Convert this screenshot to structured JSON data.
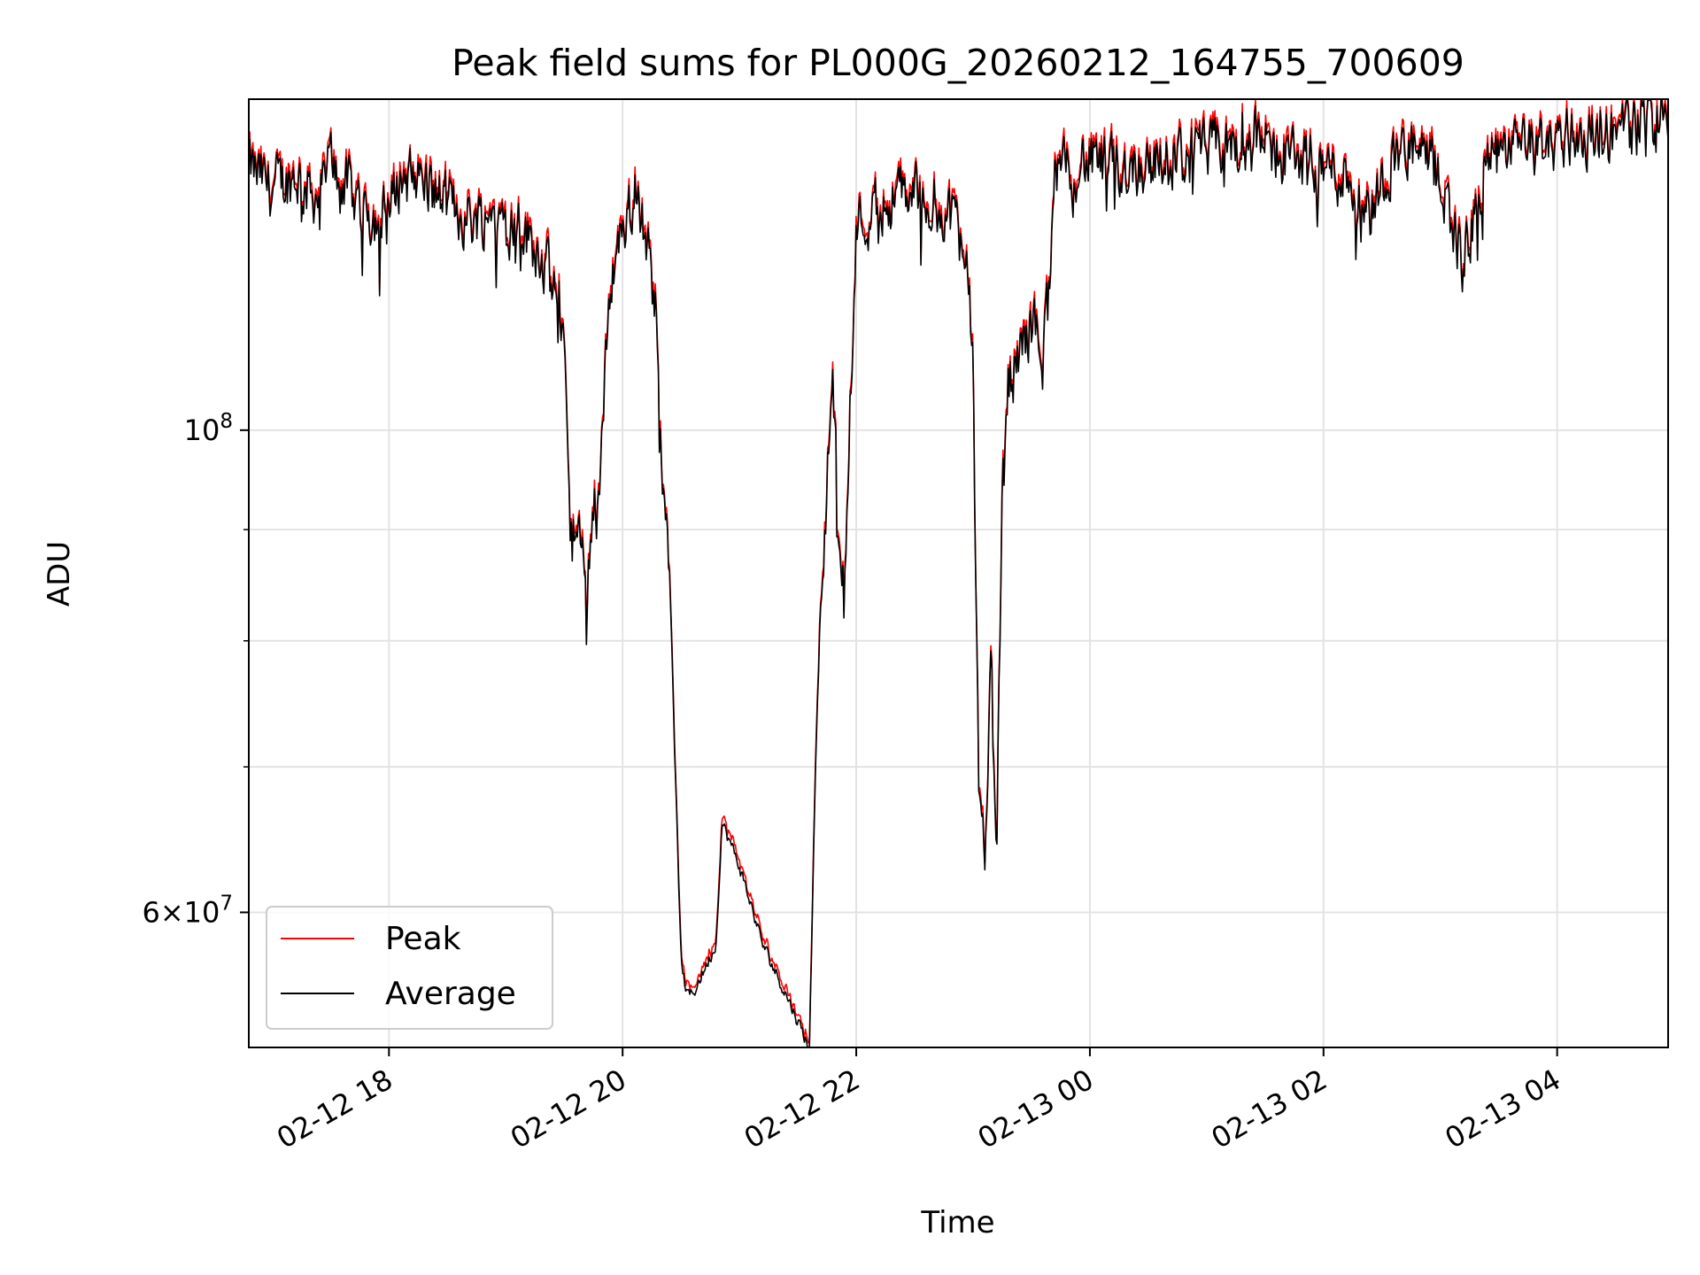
{
  "chart_data": {
    "type": "line",
    "title": "Peak field sums for PL000G_20260212_164755_700609",
    "xlabel": "Time",
    "ylabel": "ADU",
    "yscale": "log",
    "ylim": [
      52000000,
      142000000
    ],
    "xlim_hours": [
      16.8,
      28.95
    ],
    "x_unit": "hours since 2026-02-12 00:00",
    "x_ticks": [
      {
        "label": "02-12 18",
        "value": 18
      },
      {
        "label": "02-12 20",
        "value": 20
      },
      {
        "label": "02-12 22",
        "value": 22
      },
      {
        "label": "02-13 00",
        "value": 24
      },
      {
        "label": "02-13 02",
        "value": 26
      },
      {
        "label": "02-13 04",
        "value": 28
      }
    ],
    "y_major_ticks": [
      {
        "base": "10",
        "exp": "8",
        "value": 100000000
      },
      {
        "coef": "6",
        "base": "10",
        "exp": "7",
        "value": 60000000
      }
    ],
    "y_minor_ticks": [
      70000000,
      80000000,
      90000000
    ],
    "grid": true,
    "legend_position": "lower-left",
    "series": [
      {
        "name": "Peak",
        "color": "#ff0000"
      },
      {
        "name": "Average",
        "color": "#000000"
      }
    ],
    "x": [
      16.8,
      17.0,
      17.2,
      17.4,
      17.5,
      17.7,
      17.9,
      18.0,
      18.1,
      18.3,
      18.5,
      18.7,
      18.9,
      19.1,
      19.3,
      19.4,
      19.5,
      19.55,
      19.6,
      19.7,
      19.75,
      19.8,
      19.9,
      20.0,
      20.1,
      20.2,
      20.3,
      20.35,
      20.4,
      20.45,
      20.5,
      20.55,
      20.6,
      20.8,
      20.85,
      20.9,
      21.0,
      21.2,
      21.4,
      21.6,
      21.65,
      21.7,
      21.8,
      21.85,
      21.9,
      21.95,
      22.0,
      22.2,
      22.5,
      22.8,
      22.95,
      23.0,
      23.05,
      23.1,
      23.15,
      23.2,
      23.25,
      23.3,
      23.5,
      23.6,
      23.7,
      23.9,
      24.2,
      24.6,
      25.0,
      25.4,
      25.8,
      26.2,
      26.4,
      26.6,
      26.8,
      27.0,
      27.2,
      27.4,
      27.8,
      28.2,
      28.5,
      28.7,
      28.95
    ],
    "values": [
      132000000,
      129000000,
      131000000,
      128000000,
      133000000,
      128000000,
      125000000,
      126000000,
      131000000,
      130000000,
      127000000,
      125000000,
      126000000,
      124000000,
      121000000,
      116000000,
      112000000,
      88000000,
      89000000,
      86000000,
      93000000,
      94000000,
      118000000,
      124000000,
      128000000,
      123000000,
      112000000,
      95000000,
      88000000,
      70000000,
      57000000,
      55000000,
      55000000,
      58000000,
      66000000,
      65000000,
      63000000,
      58000000,
      55000000,
      52000000,
      70000000,
      85000000,
      106000000,
      89000000,
      85000000,
      105000000,
      124000000,
      127000000,
      129000000,
      126000000,
      122000000,
      108000000,
      66000000,
      63000000,
      80000000,
      63000000,
      94000000,
      105000000,
      112000000,
      108000000,
      130000000,
      133000000,
      132000000,
      133000000,
      134000000,
      136000000,
      133000000,
      131000000,
      126000000,
      134000000,
      134000000,
      131000000,
      119000000,
      133000000,
      135000000,
      137000000,
      137000000,
      138000000,
      140000000
    ]
  }
}
